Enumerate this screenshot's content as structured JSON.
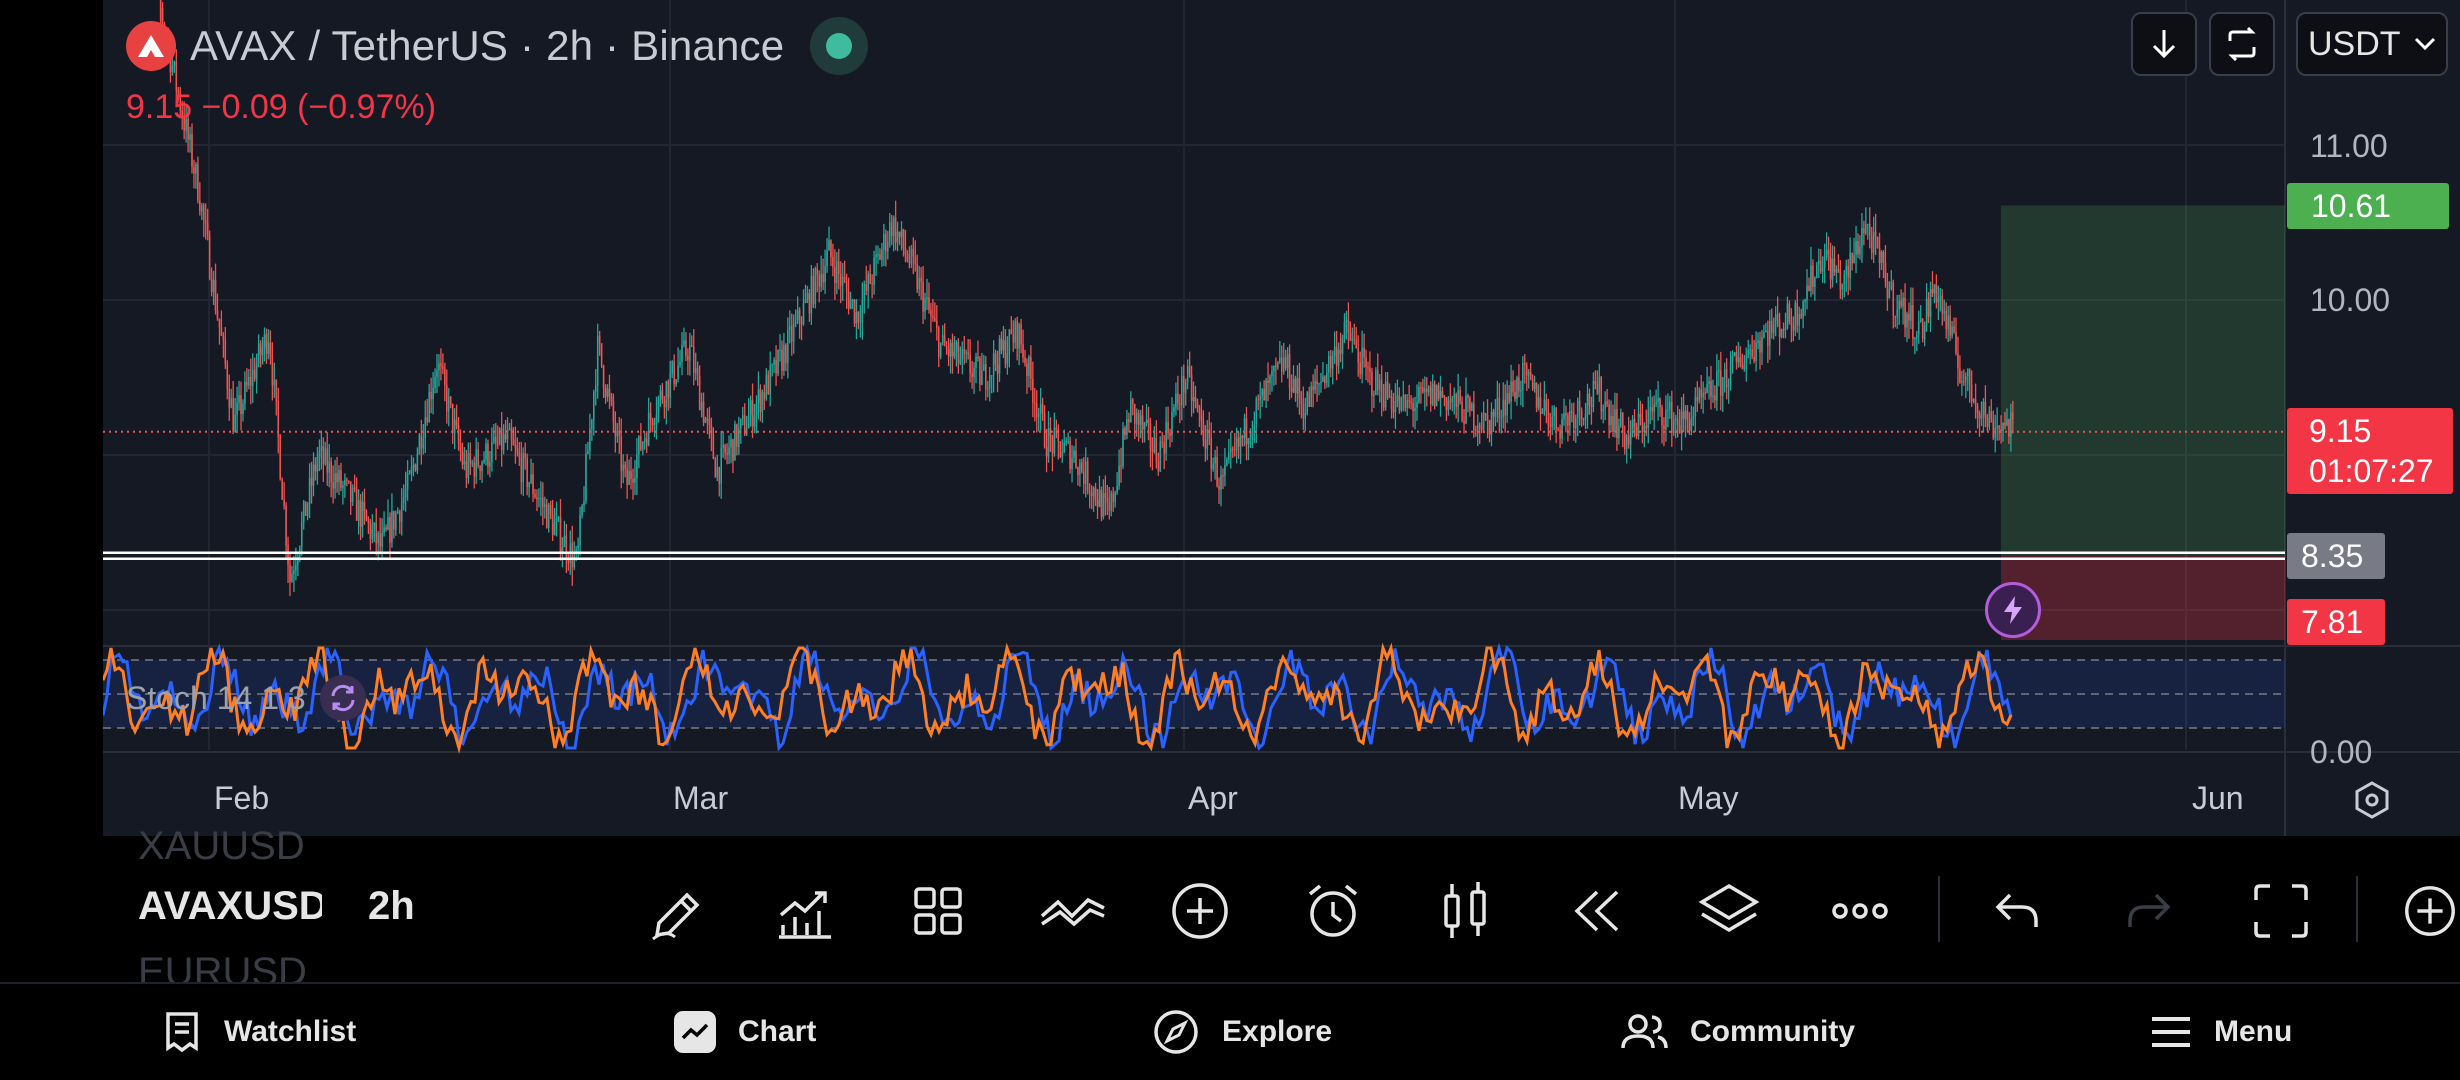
{
  "header": {
    "symbol_title": "AVAX / TetherUS · 2h · Binance",
    "price": "9.15",
    "change": "−0.09 (−0.97%)",
    "currency": "USDT"
  },
  "price_axis": [
    "11.00",
    "10.00",
    "0.00"
  ],
  "price_tags": {
    "target": "10.61",
    "current": "9.15",
    "countdown": "01:07:27",
    "line": "8.35",
    "stop": "7.81"
  },
  "time_axis": [
    "Feb",
    "Mar",
    "Apr",
    "May",
    "Jun"
  ],
  "indicator": {
    "label": "Stoch 14 1 3"
  },
  "watchlist": {
    "prev": "XAUUSD",
    "current": "AVAXUSD",
    "interval": "2h",
    "next": "EURUSD"
  },
  "nav": [
    "Watchlist",
    "Chart",
    "Explore",
    "Community",
    "Menu"
  ],
  "colors": {
    "bg": "#151924",
    "up": "#26a69a",
    "down": "#ef5350",
    "target_green": "#4caf50",
    "stop_red": "#f23645",
    "stoch_k": "#2962ff",
    "stoch_d": "#ff7f22"
  },
  "chart_data": {
    "type": "candlestick",
    "interval": "2h",
    "ylim": [
      7.8,
      11.3
    ],
    "price_path": [
      [
        0,
        12.4
      ],
      [
        0.04,
        10.7
      ],
      [
        0.065,
        9.2
      ],
      [
        0.09,
        9.8
      ],
      [
        0.105,
        8.2
      ],
      [
        0.125,
        9.0
      ],
      [
        0.15,
        8.7
      ],
      [
        0.17,
        8.4
      ],
      [
        0.19,
        8.8
      ],
      [
        0.21,
        9.6
      ],
      [
        0.23,
        8.9
      ],
      [
        0.26,
        9.1
      ],
      [
        0.29,
        8.6
      ],
      [
        0.31,
        8.3
      ],
      [
        0.325,
        9.7
      ],
      [
        0.345,
        8.8
      ],
      [
        0.365,
        9.3
      ],
      [
        0.39,
        9.7
      ],
      [
        0.41,
        8.9
      ],
      [
        0.43,
        9.2
      ],
      [
        0.455,
        9.6
      ],
      [
        0.47,
        9.9
      ],
      [
        0.49,
        10.3
      ],
      [
        0.51,
        9.9
      ],
      [
        0.535,
        10.5
      ],
      [
        0.55,
        10.2
      ],
      [
        0.57,
        9.7
      ],
      [
        0.6,
        9.5
      ],
      [
        0.625,
        9.8
      ],
      [
        0.645,
        9.1
      ],
      [
        0.665,
        9.0
      ],
      [
        0.69,
        8.6
      ],
      [
        0.705,
        9.3
      ],
      [
        0.725,
        9.0
      ],
      [
        0.745,
        9.5
      ],
      [
        0.77,
        8.8
      ],
      [
        0.79,
        9.2
      ],
      [
        0.815,
        9.6
      ],
      [
        0.83,
        9.3
      ],
      [
        0.86,
        9.8
      ],
      [
        0.875,
        9.5
      ],
      [
        0.9,
        9.3
      ],
      [
        0.925,
        9.4
      ],
      [
        0.96,
        9.2
      ],
      [
        0.985,
        9.5
      ],
      [
        1.01,
        9.2
      ],
      [
        1.04,
        9.4
      ],
      [
        1.06,
        9.1
      ],
      [
        1.08,
        9.3
      ],
      [
        1.1,
        9.2
      ],
      [
        1.13,
        9.5
      ],
      [
        1.16,
        9.8
      ],
      [
        1.18,
        9.9
      ],
      [
        1.2,
        10.3
      ],
      [
        1.215,
        10.1
      ],
      [
        1.23,
        10.5
      ],
      [
        1.25,
        10.0
      ],
      [
        1.27,
        9.8
      ],
      [
        1.28,
        10.1
      ],
      [
        1.3,
        9.5
      ],
      [
        1.32,
        9.2
      ],
      [
        1.35,
        9.2
      ]
    ],
    "lines": {
      "support": 8.35,
      "current": 9.15
    },
    "position": {
      "target": 10.61,
      "entry": 8.35,
      "stop": 7.81
    }
  }
}
